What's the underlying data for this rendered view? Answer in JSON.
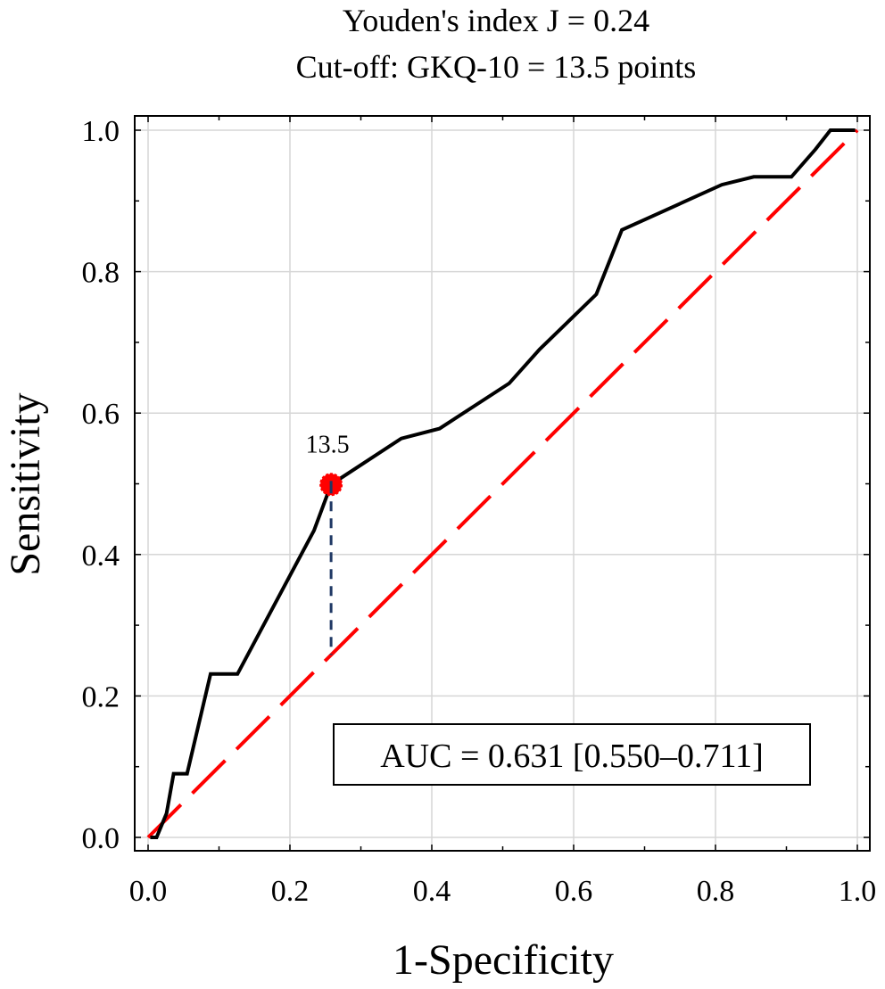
{
  "chart_data": {
    "type": "line",
    "title": [
      "Youden's index J = 0.24",
      "Cut-off: GKQ-10 = 13.5 points"
    ],
    "xlabel": "1-Specificity",
    "ylabel": "Sensitivity",
    "xlim": [
      0,
      1
    ],
    "ylim": [
      0,
      1
    ],
    "grid": true,
    "x_ticks": [
      0.0,
      0.2,
      0.4,
      0.6,
      0.8,
      1.0
    ],
    "y_ticks": [
      0.0,
      0.2,
      0.4,
      0.6,
      0.8,
      1.0
    ],
    "x_tick_labels": [
      "0.0",
      "0.2",
      "0.4",
      "0.6",
      "0.8",
      "1.0"
    ],
    "y_tick_labels": [
      "0.0",
      "0.2",
      "0.4",
      "0.6",
      "0.8",
      "1.0"
    ],
    "series": [
      {
        "name": "ROC curve",
        "color": "#000000",
        "style": "solid",
        "x": [
          0.003,
          0.012,
          0.026,
          0.036,
          0.055,
          0.088,
          0.126,
          0.234,
          0.258,
          0.357,
          0.411,
          0.509,
          0.552,
          0.632,
          0.668,
          0.721,
          0.809,
          0.854,
          0.907,
          0.941,
          0.962,
          0.997
        ],
        "y": [
          0.0,
          0.0,
          0.034,
          0.09,
          0.09,
          0.231,
          0.231,
          0.434,
          0.499,
          0.564,
          0.578,
          0.642,
          0.69,
          0.768,
          0.859,
          0.883,
          0.923,
          0.934,
          0.934,
          0.973,
          1.0,
          1.0
        ]
      },
      {
        "name": "Reference line",
        "color": "#ff0000",
        "style": "dashed",
        "x": [
          0.0,
          1.0
        ],
        "y": [
          0.0,
          1.0
        ]
      }
    ],
    "cutoff_point": {
      "label": "13.5",
      "x": 0.258,
      "y": 0.499,
      "color": "#ff0000",
      "youden_line_to_y": 0.258,
      "youden_line_color": "#1f3864"
    },
    "annotation": "AUC = 0.631 [0.550–0.711]"
  }
}
